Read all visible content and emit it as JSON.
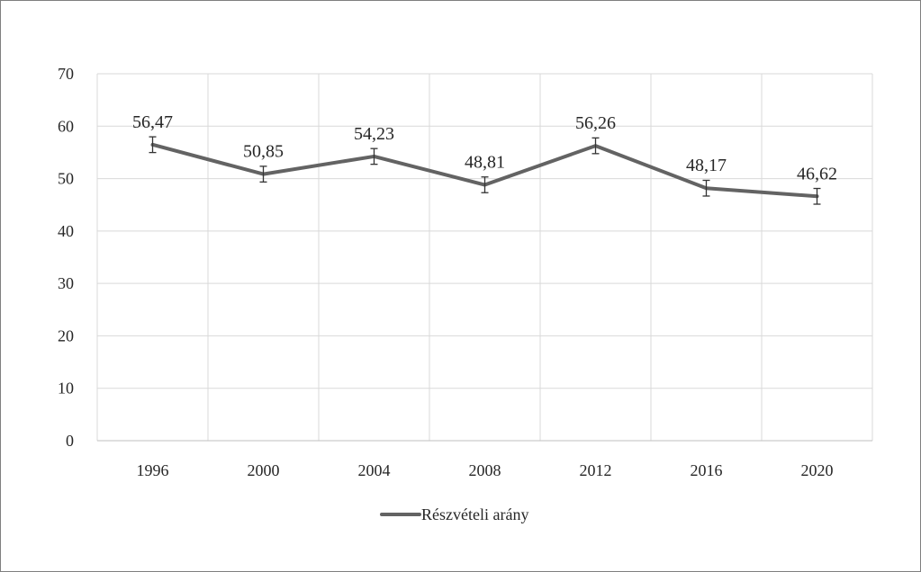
{
  "chart_data": {
    "type": "line",
    "title": "",
    "xlabel": "",
    "ylabel": "",
    "categories": [
      "1996",
      "2000",
      "2004",
      "2008",
      "2012",
      "2016",
      "2020"
    ],
    "series": [
      {
        "name": "Részvételi arány",
        "values": [
          56.47,
          50.85,
          54.23,
          48.81,
          56.26,
          48.17,
          46.62
        ],
        "labels": [
          "56,47",
          "50,85",
          "54,23",
          "48,81",
          "56,26",
          "48,17",
          "46,62"
        ],
        "error": 1.5,
        "color": "#636363"
      }
    ],
    "ylim": [
      0,
      70
    ],
    "yticks": [
      0,
      10,
      20,
      30,
      40,
      50,
      60,
      70
    ],
    "grid": true,
    "legend": "bottom",
    "gridColor": "#d9d9d9",
    "axisColor": "#bfbfbf",
    "textColor": "#262626"
  }
}
